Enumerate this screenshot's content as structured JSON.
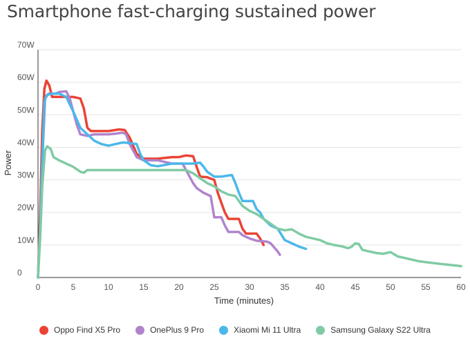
{
  "chart_data": {
    "type": "line",
    "title": "Smartphone fast-charging sustained power",
    "xlabel": "Time (minutes)",
    "ylabel": "Power",
    "xlim": [
      0,
      60
    ],
    "ylim": [
      0,
      70
    ],
    "x_ticks": [
      "0",
      "5",
      "10",
      "15",
      "20",
      "25",
      "30",
      "35",
      "40",
      "45",
      "50",
      "55",
      "60"
    ],
    "y_ticks": [
      "0",
      "10W",
      "20W",
      "30W",
      "40W",
      "50W",
      "60W",
      "70W"
    ],
    "grid": "horizontal",
    "legend_position": "bottom",
    "series": [
      {
        "name": "Oppo Find X5 Pro",
        "color": "#EA4335",
        "points": [
          [
            0,
            0
          ],
          [
            0.3,
            20
          ],
          [
            0.6,
            45
          ],
          [
            0.9,
            58
          ],
          [
            1.2,
            60.5
          ],
          [
            1.6,
            59
          ],
          [
            2,
            55.5
          ],
          [
            3,
            55.5
          ],
          [
            4,
            55.5
          ],
          [
            5,
            55.5
          ],
          [
            6,
            55
          ],
          [
            6.5,
            52
          ],
          [
            7,
            46
          ],
          [
            7.5,
            45
          ],
          [
            10,
            45
          ],
          [
            11.5,
            45.5
          ],
          [
            12.3,
            45.3
          ],
          [
            13,
            43
          ],
          [
            14,
            38
          ],
          [
            15,
            36.5
          ],
          [
            17,
            36.5
          ],
          [
            19,
            37
          ],
          [
            20,
            37
          ],
          [
            21,
            37.5
          ],
          [
            22,
            37.3
          ],
          [
            22.5,
            34
          ],
          [
            23,
            31
          ],
          [
            24,
            30.8
          ],
          [
            25,
            30
          ],
          [
            25.5,
            26
          ],
          [
            26,
            23
          ],
          [
            26.5,
            20
          ],
          [
            27,
            18
          ],
          [
            28.5,
            18
          ],
          [
            29,
            15
          ],
          [
            29.5,
            13.5
          ],
          [
            31,
            13.5
          ],
          [
            31.5,
            12
          ],
          [
            32,
            10
          ]
        ]
      },
      {
        "name": "OnePlus 9 Pro",
        "color": "#B084CC",
        "points": [
          [
            0,
            0
          ],
          [
            0.3,
            15
          ],
          [
            0.6,
            35
          ],
          [
            1,
            55
          ],
          [
            1.5,
            56.5
          ],
          [
            2.5,
            56.5
          ],
          [
            3,
            57
          ],
          [
            4,
            57.2
          ],
          [
            4.5,
            55
          ],
          [
            5,
            51
          ],
          [
            5.5,
            47
          ],
          [
            6,
            44
          ],
          [
            7,
            43.5
          ],
          [
            8,
            44
          ],
          [
            10,
            44
          ],
          [
            11,
            44.2
          ],
          [
            12,
            44.5
          ],
          [
            12.5,
            44
          ],
          [
            13,
            41
          ],
          [
            14,
            37
          ],
          [
            15,
            36
          ],
          [
            17,
            36
          ],
          [
            19,
            35
          ],
          [
            20.5,
            35
          ],
          [
            21,
            33
          ],
          [
            21.5,
            31
          ],
          [
            22,
            29
          ],
          [
            22.5,
            27.5
          ],
          [
            23.5,
            26
          ],
          [
            24.5,
            25
          ],
          [
            25,
            18.5
          ],
          [
            26,
            18.5
          ],
          [
            26.5,
            16
          ],
          [
            27,
            14
          ],
          [
            28.5,
            14
          ],
          [
            29,
            13
          ],
          [
            30,
            12
          ],
          [
            31,
            11.3
          ],
          [
            32.5,
            11
          ],
          [
            33,
            10.5
          ],
          [
            34,
            8
          ],
          [
            34.3,
            7
          ]
        ]
      },
      {
        "name": "Xiaomi Mi 11 Ultra",
        "color": "#4BB8EA",
        "points": [
          [
            0,
            0
          ],
          [
            0.3,
            15
          ],
          [
            0.6,
            35
          ],
          [
            0.9,
            54
          ],
          [
            1.2,
            56
          ],
          [
            2,
            56.5
          ],
          [
            3,
            56.5
          ],
          [
            4,
            55.5
          ],
          [
            5,
            51
          ],
          [
            6,
            46
          ],
          [
            7,
            44
          ],
          [
            8,
            42
          ],
          [
            9,
            41
          ],
          [
            10,
            40.5
          ],
          [
            11,
            41
          ],
          [
            12,
            41.5
          ],
          [
            13,
            41.3
          ],
          [
            14,
            41
          ],
          [
            14.5,
            38
          ],
          [
            15,
            36
          ],
          [
            16,
            34.5
          ],
          [
            17,
            34.2
          ],
          [
            19,
            35
          ],
          [
            20,
            35
          ],
          [
            21,
            35
          ],
          [
            22,
            35
          ],
          [
            23,
            35.3
          ],
          [
            23.5,
            34
          ],
          [
            24,
            32.5
          ],
          [
            25,
            31
          ],
          [
            26,
            31
          ],
          [
            27.5,
            31.5
          ],
          [
            28,
            29
          ],
          [
            28.5,
            26
          ],
          [
            29,
            23.5
          ],
          [
            30.5,
            23.5
          ],
          [
            31,
            21
          ],
          [
            31.5,
            20
          ],
          [
            32,
            18
          ],
          [
            33,
            16
          ],
          [
            34,
            15
          ],
          [
            35,
            11.5
          ],
          [
            36,
            10.5
          ],
          [
            37,
            9.5
          ],
          [
            38,
            8.8
          ]
        ]
      },
      {
        "name": "Samsung Galaxy S22 Ultra",
        "color": "#7FCBA4",
        "points": [
          [
            0,
            0
          ],
          [
            0.3,
            12
          ],
          [
            0.6,
            28
          ],
          [
            1,
            39
          ],
          [
            1.3,
            40.3
          ],
          [
            1.8,
            39.5
          ],
          [
            2.2,
            37
          ],
          [
            3,
            36
          ],
          [
            4,
            35
          ],
          [
            5,
            34
          ],
          [
            6,
            32.5
          ],
          [
            6.5,
            32.2
          ],
          [
            7,
            33
          ],
          [
            10,
            33
          ],
          [
            15,
            33
          ],
          [
            20,
            33
          ],
          [
            21,
            33
          ],
          [
            22,
            32
          ],
          [
            23,
            30.5
          ],
          [
            24,
            29
          ],
          [
            25,
            28
          ],
          [
            26,
            26.5
          ],
          [
            27,
            25.5
          ],
          [
            28,
            25
          ],
          [
            29,
            22
          ],
          [
            30,
            20.5
          ],
          [
            31,
            19.5
          ],
          [
            32,
            18
          ],
          [
            33,
            16.5
          ],
          [
            34,
            15
          ],
          [
            35,
            14.5
          ],
          [
            36,
            14.8
          ],
          [
            37,
            13.5
          ],
          [
            38,
            12.5
          ],
          [
            40,
            11.5
          ],
          [
            41,
            10.5
          ],
          [
            42,
            10
          ],
          [
            43,
            9.6
          ],
          [
            44,
            9
          ],
          [
            44.5,
            9.5
          ],
          [
            45,
            10.5
          ],
          [
            45.5,
            10.3
          ],
          [
            46,
            8.5
          ],
          [
            47,
            8
          ],
          [
            48,
            7.5
          ],
          [
            49,
            7.3
          ],
          [
            50,
            7.8
          ],
          [
            51,
            6.5
          ],
          [
            52,
            6
          ],
          [
            53,
            5.5
          ],
          [
            54,
            5
          ],
          [
            55,
            4.7
          ],
          [
            57,
            4.2
          ],
          [
            60,
            3.5
          ]
        ]
      }
    ]
  }
}
